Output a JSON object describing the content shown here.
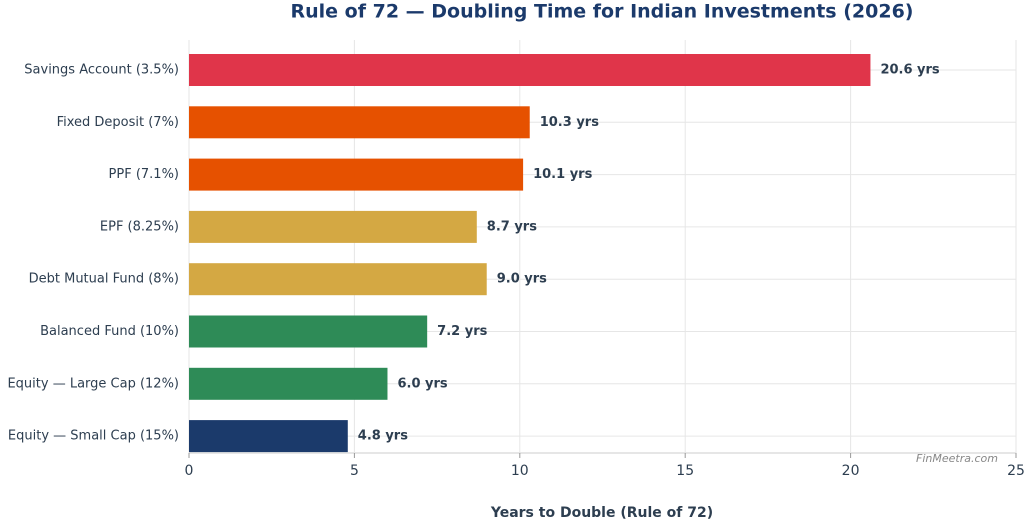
{
  "chart_data": {
    "type": "barh",
    "title": "Rule of 72 — Doubling Time for Indian Investments (2026)",
    "x_label": "Years to Double (Rule of 72)",
    "annotation": "FinMeetra.com",
    "categories": [
      "Savings Account (3.5%)",
      "Fixed Deposit (7%)",
      "PPF (7.1%)",
      "EPF (8.25%)",
      "Debt Mutual Fund (8%)",
      "Balanced Fund (10%)",
      "Equity — Large Cap (12%)",
      "Equity — Small Cap (15%)"
    ],
    "values": [
      20.6,
      10.3,
      10.1,
      8.7,
      9.0,
      7.2,
      6.0,
      4.8
    ],
    "value_labels": [
      "20.6 yrs",
      "10.3 yrs",
      "10.1 yrs",
      "8.7 yrs",
      "9.0 yrs",
      "7.2 yrs",
      "6.0 yrs",
      "4.8 yrs"
    ],
    "colors": [
      "#e0354a",
      "#e65100",
      "#e65100",
      "#d4a843",
      "#d4a843",
      "#2e8b57",
      "#2e8b57",
      "#1b3a6b"
    ],
    "xlim": [
      0,
      25
    ],
    "xticks": [
      0,
      5,
      10,
      15,
      20,
      25
    ],
    "grid": true
  }
}
